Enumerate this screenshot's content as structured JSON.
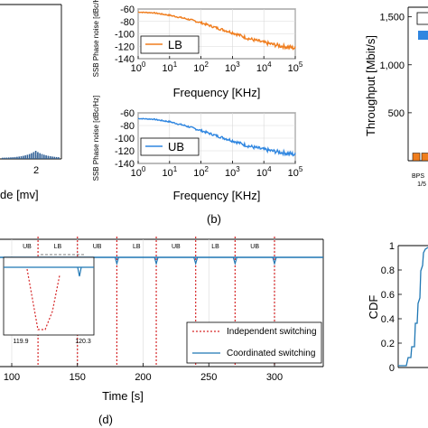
{
  "figure": {
    "panel_b_label": "(b)",
    "panel_d_label": "(d)"
  },
  "chart_data": [
    {
      "id": "top-left-partial",
      "type": "bar",
      "xlabel": "de [mv]",
      "xticks": [
        "2"
      ],
      "note": "left part of panel cropped"
    },
    {
      "id": "phase-noise-lb",
      "type": "line",
      "xlabel": "Frequency [KHz]",
      "ylabel": "SSB Phase noise [dBc/Hz]",
      "xscale": "log",
      "xlim": [
        1,
        100000
      ],
      "ylim": [
        -140,
        -60
      ],
      "xticks": [
        "10^0",
        "10^1",
        "10^2",
        "10^3",
        "10^4",
        "10^5"
      ],
      "yticks": [
        -60,
        -80,
        -100,
        -120,
        -140
      ],
      "series": [
        {
          "name": "LB",
          "color": "#f07d1d",
          "x": [
            1,
            3,
            10,
            30,
            100,
            300,
            1000,
            3000,
            10000,
            30000,
            100000
          ],
          "y": [
            -65,
            -66,
            -70,
            -75,
            -82,
            -90,
            -98,
            -107,
            -114,
            -119,
            -123
          ]
        }
      ]
    },
    {
      "id": "phase-noise-ub",
      "type": "line",
      "xlabel": "Frequency [KHz]",
      "ylabel": "SSB Phase noise [dBc/Hz]",
      "xscale": "log",
      "xlim": [
        1,
        100000
      ],
      "ylim": [
        -140,
        -60
      ],
      "xticks": [
        "10^0",
        "10^1",
        "10^2",
        "10^3",
        "10^4",
        "10^5"
      ],
      "yticks": [
        -60,
        -80,
        -100,
        -120,
        -140
      ],
      "series": [
        {
          "name": "UB",
          "color": "#2f86e0",
          "x": [
            1,
            3,
            10,
            30,
            100,
            300,
            1000,
            3000,
            10000,
            30000,
            100000
          ],
          "y": [
            -69,
            -70,
            -74,
            -80,
            -88,
            -96,
            -104,
            -112,
            -118,
            -122,
            -126
          ]
        }
      ]
    },
    {
      "id": "throughput",
      "type": "bar",
      "ylabel": "Throughput [Mbit/s]",
      "yticks": [
        "1,500",
        "1,000",
        "500"
      ],
      "ylim": [
        0,
        1600
      ],
      "categories": [
        "BPS",
        "1/5"
      ],
      "values": [
        80,
        80
      ],
      "note": "panel cropped on right"
    },
    {
      "id": "switching-timeline",
      "type": "line",
      "xlabel": "Time [s]",
      "xticks": [
        100,
        150,
        200,
        250,
        300
      ],
      "band_labels": [
        "UB",
        "LB",
        "UB",
        "LB",
        "UB",
        "LB",
        "UB"
      ],
      "inset_ticks": [
        "119.9",
        "120.3"
      ],
      "series": [
        {
          "name": "Independent switching",
          "color": "#d62728"
        },
        {
          "name": "Coordinated switching",
          "color": "#1f77b4"
        }
      ]
    },
    {
      "id": "cdf",
      "type": "line",
      "ylabel": "CDF",
      "yticks": [
        "1",
        "0.8",
        "0.6",
        "0.4",
        "0.2",
        "0"
      ],
      "ylim": [
        0,
        1
      ]
    }
  ]
}
